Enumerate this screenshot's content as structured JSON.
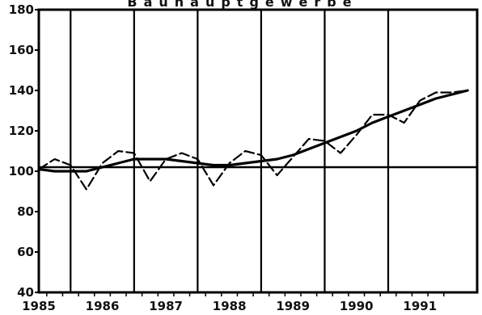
{
  "chart_data": {
    "type": "line",
    "title": "Bauhauptgewerbe",
    "xlabel": "",
    "ylabel": "",
    "xlim": [
      1985.0,
      1991.9
    ],
    "ylim": [
      40,
      180
    ],
    "yticks": [
      40,
      60,
      80,
      100,
      120,
      140,
      160,
      180
    ],
    "xtick_labels": [
      "1985",
      "1986",
      "1987",
      "1988",
      "1989",
      "1990",
      "1991"
    ],
    "reference_line": 102,
    "grid": "vertical",
    "legend": "none",
    "series": [
      {
        "style": "dashed",
        "x": [
          1985.0,
          1985.25,
          1985.5,
          1985.75,
          1986.0,
          1986.25,
          1986.5,
          1986.75,
          1987.0,
          1987.25,
          1987.5,
          1987.75,
          1988.0,
          1988.25,
          1988.5,
          1988.75,
          1989.0,
          1989.25,
          1989.5,
          1989.75,
          1990.0,
          1990.25,
          1990.5,
          1990.75,
          1991.0,
          1991.25,
          1991.5,
          1991.75
        ],
        "values": [
          101,
          106,
          103,
          91,
          104,
          110,
          109,
          95,
          106,
          109,
          106,
          93,
          104,
          110,
          108,
          98,
          107,
          116,
          115,
          109,
          118,
          128,
          128,
          124,
          135,
          139,
          139,
          140
        ]
      },
      {
        "style": "solid",
        "x": [
          1985.0,
          1985.25,
          1985.5,
          1985.75,
          1986.0,
          1986.25,
          1986.5,
          1986.75,
          1987.0,
          1987.25,
          1987.5,
          1987.75,
          1988.0,
          1988.25,
          1988.5,
          1988.75,
          1989.0,
          1989.25,
          1989.5,
          1989.75,
          1990.0,
          1990.25,
          1990.5,
          1990.75,
          1991.0,
          1991.25,
          1991.5,
          1991.75
        ],
        "values": [
          101,
          100,
          100,
          100,
          102,
          104,
          106,
          106,
          106,
          105,
          104,
          103,
          103,
          104,
          105,
          106,
          108,
          111,
          114,
          117,
          120,
          124,
          127,
          130,
          133,
          136,
          138,
          140
        ]
      }
    ]
  }
}
